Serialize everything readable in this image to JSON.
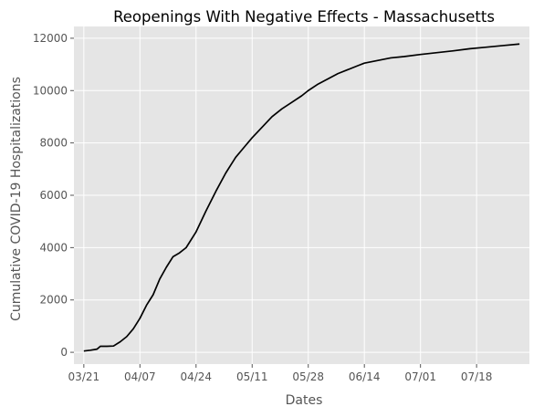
{
  "chart_data": {
    "type": "line",
    "title": "Reopenings With Negative Effects - Massachusetts",
    "xlabel": "Dates",
    "ylabel": "Cumulative COVID-19 Hospitalizations",
    "x_ticks": [
      "03/21",
      "04/07",
      "04/24",
      "05/11",
      "05/28",
      "06/14",
      "07/01",
      "07/18"
    ],
    "y_ticks": [
      0,
      2000,
      4000,
      6000,
      8000,
      10000,
      12000
    ],
    "ylim": [
      -450,
      12450
    ],
    "xlim": [
      "2020-03-18",
      "2020-08-03"
    ],
    "grid": true,
    "series": [
      {
        "color": "#000000",
        "x": [
          "2020-03-21",
          "2020-03-23",
          "2020-03-25",
          "2020-03-26",
          "2020-03-28",
          "2020-03-30",
          "2020-04-01",
          "2020-04-03",
          "2020-04-05",
          "2020-04-07",
          "2020-04-09",
          "2020-04-11",
          "2020-04-13",
          "2020-04-15",
          "2020-04-17",
          "2020-04-19",
          "2020-04-21",
          "2020-04-24",
          "2020-04-27",
          "2020-04-30",
          "2020-05-03",
          "2020-05-06",
          "2020-05-09",
          "2020-05-11",
          "2020-05-14",
          "2020-05-17",
          "2020-05-20",
          "2020-05-23",
          "2020-05-26",
          "2020-05-28",
          "2020-05-31",
          "2020-06-03",
          "2020-06-06",
          "2020-06-09",
          "2020-06-12",
          "2020-06-14",
          "2020-06-18",
          "2020-06-22",
          "2020-06-26",
          "2020-07-01",
          "2020-07-06",
          "2020-07-11",
          "2020-07-16",
          "2020-07-21",
          "2020-07-26",
          "2020-07-31"
        ],
        "values": [
          50,
          80,
          120,
          230,
          230,
          240,
          400,
          600,
          900,
          1300,
          1800,
          2200,
          2800,
          3250,
          3650,
          3800,
          4000,
          4600,
          5400,
          6150,
          6850,
          7450,
          7900,
          8200,
          8600,
          9000,
          9300,
          9550,
          9800,
          10000,
          10250,
          10450,
          10650,
          10800,
          10950,
          11050,
          11150,
          11250,
          11300,
          11380,
          11450,
          11520,
          11600,
          11660,
          11720,
          11780
        ]
      }
    ]
  }
}
